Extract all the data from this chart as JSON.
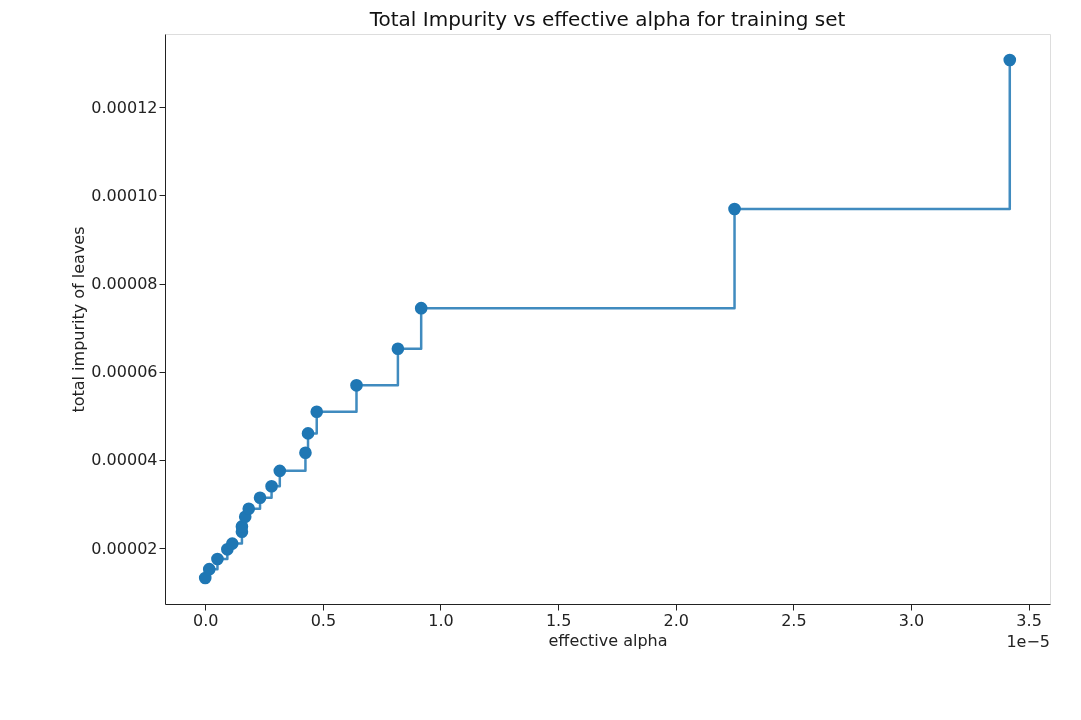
{
  "chart_data": {
    "type": "step",
    "title": "Total Impurity vs effective alpha for training set",
    "xlabel": "effective alpha",
    "ylabel": "total impurity of leaves",
    "annotations": [
      "1e−5"
    ],
    "x": [
      0,
      0.017,
      0.052,
      0.094,
      0.115,
      0.156,
      0.156,
      0.17,
      0.185,
      0.233,
      0.282,
      0.317,
      0.426,
      0.437,
      0.474,
      0.643,
      0.819,
      0.918,
      2.25,
      3.42
    ],
    "series": [
      {
        "color": "#1f77b4",
        "values": [
          1.32e-05,
          1.52e-05,
          1.75e-05,
          1.97e-05,
          2.1e-05,
          2.37e-05,
          2.49e-05,
          2.71e-05,
          2.89e-05,
          3.14e-05,
          3.4e-05,
          3.75e-05,
          4.16e-05,
          4.6e-05,
          5.09e-05,
          5.69e-05,
          6.52e-05,
          7.44e-05,
          9.69e-05,
          0.0001307
        ]
      }
    ],
    "xlim": [
      -0.171,
      3.591
    ],
    "ylim": [
      7.3e-06,
      0.0001366
    ],
    "xticks": [
      {
        "value": 0,
        "label": "0.0"
      },
      0.5,
      {
        "value": 1,
        "label": "1.0"
      },
      1.5,
      {
        "value": 2,
        "label": "2.0"
      },
      2.5,
      {
        "value": 3,
        "label": "3.0"
      },
      3.5
    ],
    "yticks": [
      {
        "value": 2e-05,
        "label": "0.00002"
      },
      {
        "value": 4e-05,
        "label": "0.00004"
      },
      {
        "value": 6e-05,
        "label": "0.00006"
      },
      {
        "value": 8e-05,
        "label": "0.00008"
      },
      {
        "value": 0.0001,
        "label": "0.00010"
      },
      {
        "value": 0.00012,
        "label": "0.00012"
      }
    ],
    "grid": false,
    "marker": "circle",
    "line_style": "solid"
  }
}
